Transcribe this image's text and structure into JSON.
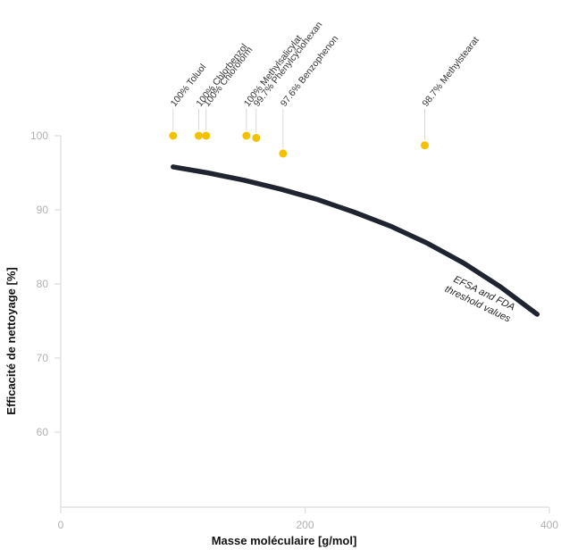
{
  "chart_data": {
    "type": "scatter",
    "title": "",
    "xlabel": "Masse moléculaire [g/mol]",
    "ylabel": "Efficacité de nettoyage [%]",
    "xlim": [
      0,
      400
    ],
    "ylim": [
      50,
      100
    ],
    "x_ticks": [
      "0",
      "200",
      "400"
    ],
    "y_ticks": [
      "100",
      "90",
      "80",
      "70",
      "60"
    ],
    "grid": false,
    "colors": {
      "points": "#f2c200",
      "curve": "#1f2430",
      "axis": "#dcdcdc"
    },
    "series": [
      {
        "type": "scatter",
        "points": [
          {
            "x": 92,
            "y": 100,
            "label": "100% Toluol"
          },
          {
            "x": 113,
            "y": 100,
            "label": "100% Chlorbenzol"
          },
          {
            "x": 119,
            "y": 100,
            "label": "100% Chloroform"
          },
          {
            "x": 152,
            "y": 100,
            "label": "100% Methylsalicylat"
          },
          {
            "x": 160,
            "y": 99.7,
            "label": "99.7% Phenylcyclohexan"
          },
          {
            "x": 182,
            "y": 97.6,
            "label": "97.6% Benzophenon"
          },
          {
            "x": 298,
            "y": 98.7,
            "label": "98.7% Methylstearat"
          }
        ]
      },
      {
        "type": "line",
        "x": [
          92,
          120,
          150,
          180,
          210,
          240,
          270,
          300,
          330,
          360,
          390
        ],
        "y": [
          95.8,
          95.0,
          94.0,
          92.8,
          91.4,
          89.7,
          87.8,
          85.5,
          82.8,
          79.6,
          75.9
        ],
        "annotation": "EFSA and FDA threshold values"
      }
    ]
  }
}
